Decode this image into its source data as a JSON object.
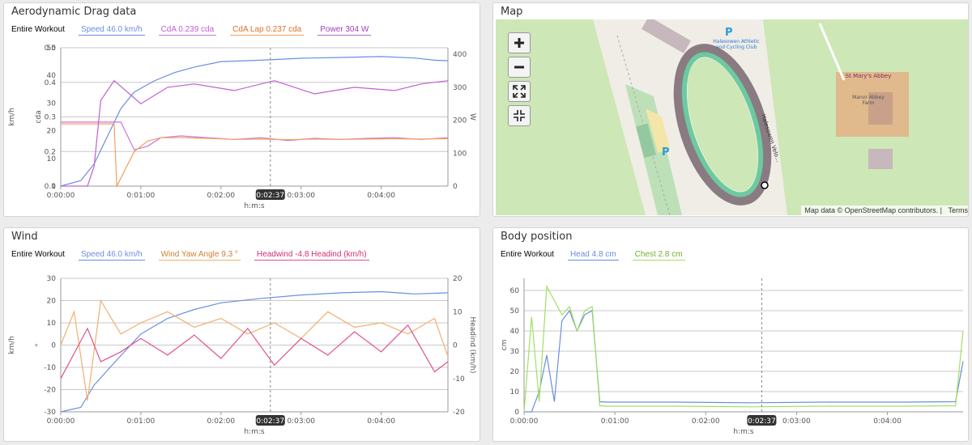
{
  "colors": {
    "speed": "#6b8ee0",
    "cda": "#d070e0",
    "cda_lap": "#f0a060",
    "power": "#c060d0",
    "yaw": "#f0b070",
    "headwind": "#e05090",
    "head": "#6b8ee0",
    "chest": "#a0e060",
    "lap_line": "#e83050",
    "grid": "#c8c8c8",
    "cursor_badge": "#333333"
  },
  "drag": {
    "title": "Aerodynamic Drag data",
    "legend": {
      "group": "Entire Workout",
      "items": [
        {
          "label": "Speed  46.0 km/h",
          "color": "#6b8ee0"
        },
        {
          "label": "CdA  0.239 cda",
          "color": "#d070e0"
        },
        {
          "label": "CdA Lap  0.237 cda",
          "color": "#f0a060"
        },
        {
          "label": "Power  304 W",
          "color": "#c060d0"
        }
      ]
    },
    "axes": {
      "y1_label": "km/h",
      "y2_label": "cda",
      "yr_label": "W",
      "x_label": "h:m:s",
      "cursor": "0:02:37"
    }
  },
  "wind": {
    "title": "Wind",
    "legend": {
      "group": "Entire Workout",
      "items": [
        {
          "label": "Speed  46.0 km/h",
          "color": "#6b8ee0"
        },
        {
          "label": "Wind Yaw Angle  9.3 °",
          "color": "#f0b070"
        },
        {
          "label": "Headwind  -4.8 Headind (km/h)",
          "color": "#e05090"
        }
      ]
    },
    "axes": {
      "y1_label": "km/h",
      "y2_label": "°",
      "yr_label": "Headind (km/h)",
      "x_label": "h:m:s",
      "cursor": "0:02:37"
    }
  },
  "body": {
    "title": "Body position",
    "legend": {
      "group": "Entire Workout",
      "items": [
        {
          "label": "Head  4.8 cm",
          "color": "#6b8ee0"
        },
        {
          "label": "Chest  2.8 cm",
          "color": "#a0e060"
        }
      ]
    },
    "axes": {
      "y1_label": "cm",
      "x_label": "h:m:s",
      "cursor": "0:02:37"
    }
  },
  "map": {
    "title": "Map",
    "attribution": "Map data © OpenStreetMap contributors. |",
    "terms": "Terms",
    "labels": {
      "parking": "P",
      "venue": "Halesowen Athletic and Cycling Club",
      "abbey": "St Mary's Abbey",
      "farm": "Manor Abbey Farm",
      "track": "Halesowen Velo..."
    }
  },
  "chart_data": [
    {
      "type": "line",
      "title": "Aerodynamic Drag data",
      "xlabel": "h:m:s",
      "x_ticks": [
        "0:00:00",
        "0:01:00",
        "0:02:00",
        "0:03:00",
        "0:04:00"
      ],
      "x_range_seconds": [
        0,
        290
      ],
      "y_axes": {
        "speed_kmh": {
          "ticks": [
            0.1,
            0.2,
            0.3,
            0.4,
            0.5
          ],
          "range": [
            0.1,
            0.5
          ],
          "label": "km/h"
        },
        "cda": {
          "ticks": [
            0,
            10,
            20,
            30,
            40,
            50
          ],
          "range": [
            0,
            50
          ],
          "label": "cda"
        },
        "power_w": {
          "ticks": [
            0,
            100,
            200,
            300,
            400
          ],
          "range": [
            0,
            420
          ],
          "label": "W"
        }
      },
      "series": [
        {
          "name": "Speed",
          "axis": "cda",
          "x": [
            0,
            15,
            25,
            35,
            45,
            55,
            70,
            85,
            100,
            120,
            150,
            180,
            210,
            240,
            265,
            280,
            290
          ],
          "values": [
            0,
            2,
            8,
            18,
            28,
            34,
            38,
            41,
            43,
            45,
            45.5,
            46.2,
            46.5,
            46.8,
            46.3,
            45.5,
            45.3
          ]
        },
        {
          "name": "CdA",
          "axis": "speed_kmh",
          "x": [
            0,
            35,
            45,
            55,
            65,
            75,
            90,
            110,
            130,
            150,
            170,
            190,
            210,
            230,
            250,
            270,
            290
          ],
          "values": [
            0.285,
            0.285,
            0.285,
            0.205,
            0.215,
            0.24,
            0.245,
            0.24,
            0.235,
            0.24,
            0.232,
            0.238,
            0.235,
            0.238,
            0.24,
            0.235,
            0.24
          ]
        },
        {
          "name": "CdA Lap",
          "axis": "speed_kmh",
          "x": [
            0,
            35,
            40,
            42,
            55,
            65,
            75,
            90,
            110,
            130,
            150,
            170,
            190,
            210,
            230,
            250,
            270,
            290
          ],
          "values": [
            0.28,
            0.28,
            0.28,
            0.1,
            0.2,
            0.23,
            0.24,
            0.24,
            0.238,
            0.235,
            0.236,
            0.234,
            0.236,
            0.235,
            0.236,
            0.237,
            0.236,
            0.237
          ]
        },
        {
          "name": "Power",
          "axis": "power_w",
          "x": [
            0,
            20,
            25,
            30,
            40,
            60,
            80,
            100,
            130,
            160,
            190,
            220,
            250,
            270,
            290
          ],
          "values": [
            0,
            0,
            60,
            260,
            320,
            250,
            300,
            310,
            290,
            320,
            280,
            300,
            290,
            310,
            320
          ]
        }
      ]
    },
    {
      "type": "line",
      "title": "Wind",
      "xlabel": "h:m:s",
      "x_ticks": [
        "0:00:00",
        "0:01:00",
        "0:02:00",
        "0:03:00",
        "0:04:00"
      ],
      "x_range_seconds": [
        0,
        290
      ],
      "y_axes": {
        "speed_kmh": {
          "ticks": [
            -30,
            -20,
            -10,
            0,
            10,
            20,
            30
          ],
          "range": [
            -30,
            30
          ],
          "label": "km/h"
        },
        "headwind": {
          "ticks": [
            -20,
            -10,
            0,
            10,
            20
          ],
          "range": [
            -20,
            20
          ],
          "label": "Headind (km/h)"
        }
      },
      "series": [
        {
          "name": "Speed",
          "axis": "speed_kmh",
          "x": [
            0,
            15,
            25,
            40,
            60,
            80,
            100,
            120,
            150,
            180,
            210,
            240,
            265,
            290
          ],
          "values": [
            -30,
            -28,
            -18,
            -8,
            5,
            12,
            16,
            19,
            21,
            22.5,
            23.5,
            24,
            23,
            23.5
          ]
        },
        {
          "name": "Wind Yaw Angle",
          "axis": "speed_kmh",
          "x": [
            0,
            10,
            20,
            30,
            45,
            60,
            80,
            100,
            120,
            140,
            160,
            180,
            200,
            220,
            240,
            260,
            280,
            290
          ],
          "values": [
            0,
            15,
            -25,
            20,
            5,
            10,
            15,
            8,
            12,
            5,
            10,
            3,
            15,
            8,
            10,
            5,
            12,
            -5
          ]
        },
        {
          "name": "Headwind",
          "axis": "headwind",
          "x": [
            0,
            20,
            30,
            45,
            60,
            80,
            100,
            120,
            140,
            160,
            180,
            200,
            220,
            240,
            260,
            280,
            290
          ],
          "values": [
            -10,
            5,
            -5,
            -2,
            2,
            -3,
            3,
            -4,
            5,
            -6,
            2,
            -3,
            4,
            -2,
            6,
            -8,
            -5
          ]
        }
      ]
    },
    {
      "type": "line",
      "title": "Body position",
      "xlabel": "h:m:s",
      "x_ticks": [
        "0:00:00",
        "0:01:00",
        "0:02:00",
        "0:03:00",
        "0:04:00"
      ],
      "x_range_seconds": [
        0,
        290
      ],
      "y_axes": {
        "cm": {
          "ticks": [
            0,
            10,
            20,
            30,
            40,
            50,
            60
          ],
          "range": [
            0,
            66
          ],
          "label": "cm"
        }
      },
      "series": [
        {
          "name": "Head",
          "axis": "cm",
          "x": [
            0,
            5,
            10,
            15,
            20,
            25,
            30,
            35,
            40,
            45,
            50,
            55,
            60,
            100,
            150,
            200,
            250,
            285,
            290
          ],
          "values": [
            0,
            0,
            10,
            28,
            5,
            45,
            50,
            40,
            48,
            50,
            5,
            4.8,
            4.8,
            4.8,
            4.5,
            4.8,
            4.8,
            5,
            25
          ]
        },
        {
          "name": "Chest",
          "axis": "cm",
          "x": [
            0,
            5,
            10,
            15,
            20,
            25,
            30,
            35,
            40,
            45,
            50,
            55,
            60,
            100,
            150,
            200,
            250,
            285,
            290
          ],
          "values": [
            0,
            47,
            5,
            62,
            55,
            48,
            52,
            40,
            50,
            52,
            3,
            2.8,
            2.8,
            2.8,
            2.5,
            2.8,
            2.8,
            3,
            40
          ]
        }
      ]
    }
  ]
}
